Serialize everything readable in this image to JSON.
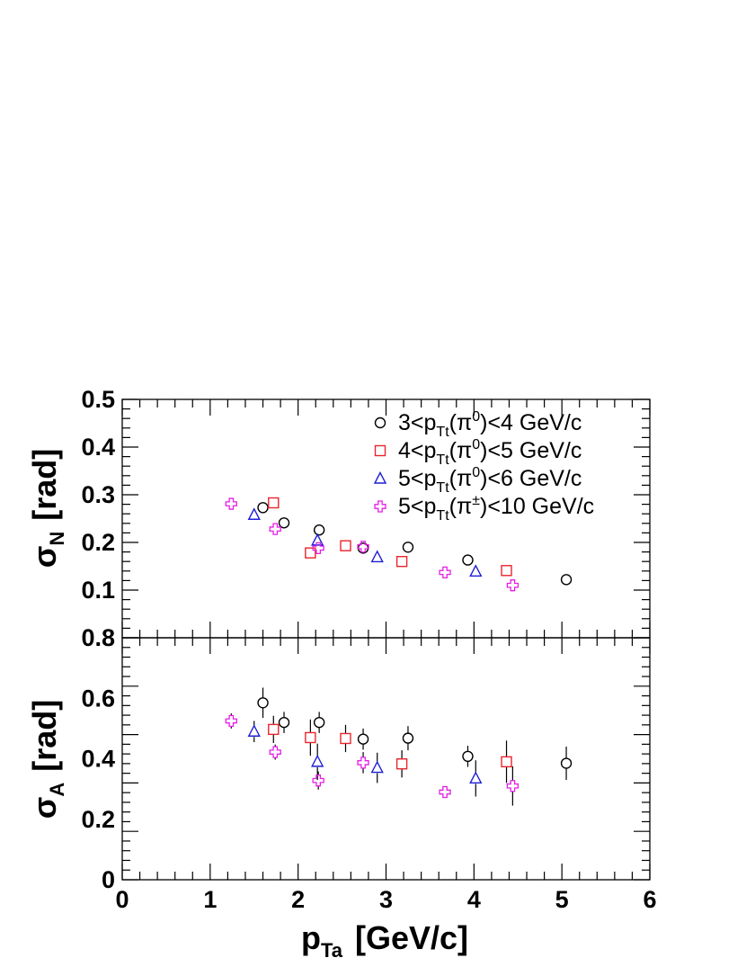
{
  "chart_data": [
    {
      "type": "scatter",
      "panel": "top",
      "ylabel": {
        "symbol": "σ",
        "subscript": "N",
        "unit": "[rad]"
      },
      "xlim": [
        0,
        6
      ],
      "ylim": [
        0.0,
        0.5
      ],
      "yticks": [
        "0.5",
        "0.4",
        "0.3",
        "0.2",
        "0.1",
        "0.8"
      ],
      "ytick_values": [
        0.5,
        0.4,
        0.3,
        0.2,
        0.1,
        0.0
      ],
      "grid": false,
      "legend_position": "top-right",
      "series": [
        {
          "name": "3<p_Tt(π^0)<4 GeV/c",
          "legend": {
            "pre": "3<p",
            "sub": "Tt",
            "mid": "(π",
            "sup": "0",
            "post": ")<4 GeV/c"
          },
          "marker": "circle",
          "color": "#000000",
          "points": [
            {
              "x": 1.6,
              "y": 0.273,
              "err": 0.01
            },
            {
              "x": 1.84,
              "y": 0.241,
              "err": 0.008
            },
            {
              "x": 2.24,
              "y": 0.226,
              "err": 0.008
            },
            {
              "x": 2.74,
              "y": 0.188,
              "err": 0.006
            },
            {
              "x": 3.25,
              "y": 0.19,
              "err": 0.007
            },
            {
              "x": 3.93,
              "y": 0.163,
              "err": 0.006
            },
            {
              "x": 5.05,
              "y": 0.122,
              "err": 0.006
            }
          ]
        },
        {
          "name": "4<p_Tt(π^0)<5 GeV/c",
          "legend": {
            "pre": "4<p",
            "sub": "Tt",
            "mid": "(π",
            "sup": "0",
            "post": ")<5 GeV/c"
          },
          "marker": "square",
          "color": "#e8262d",
          "points": [
            {
              "x": 1.72,
              "y": 0.283,
              "err": 0.012
            },
            {
              "x": 2.14,
              "y": 0.178,
              "err": 0.006
            },
            {
              "x": 2.54,
              "y": 0.193,
              "err": 0.006
            },
            {
              "x": 3.18,
              "y": 0.16,
              "err": 0.006
            },
            {
              "x": 4.37,
              "y": 0.141,
              "err": 0.007
            }
          ]
        },
        {
          "name": "5<p_Tt(π^0)<6 GeV/c",
          "legend": {
            "pre": "5<p",
            "sub": "Tt",
            "mid": "(π",
            "sup": "0",
            "post": ")<6 GeV/c"
          },
          "marker": "triangle",
          "color": "#1f1fd6",
          "points": [
            {
              "x": 1.5,
              "y": 0.258,
              "err": 0.01
            },
            {
              "x": 2.22,
              "y": 0.204,
              "err": 0.008
            },
            {
              "x": 2.9,
              "y": 0.169,
              "err": 0.007
            },
            {
              "x": 4.02,
              "y": 0.139,
              "err": 0.008
            }
          ]
        },
        {
          "name": "5<p_Tt(π^±)<10 GeV/c",
          "legend": {
            "pre": "5<p",
            "sub": "Tt",
            "mid": "(π",
            "sup": "±",
            "post": ")<10 GeV/c"
          },
          "marker": "cross",
          "color": "#e61ee6",
          "points": [
            {
              "x": 1.24,
              "y": 0.281,
              "err": 0.007
            },
            {
              "x": 1.74,
              "y": 0.228,
              "err": 0.006
            },
            {
              "x": 2.23,
              "y": 0.188,
              "err": 0.006
            },
            {
              "x": 2.74,
              "y": 0.191,
              "err": 0.005
            },
            {
              "x": 3.67,
              "y": 0.137,
              "err": 0.005
            },
            {
              "x": 4.44,
              "y": 0.11,
              "err": 0.005
            }
          ]
        }
      ]
    },
    {
      "type": "scatter",
      "panel": "bottom",
      "xlabel": {
        "main": "p",
        "subscript": "Ta",
        "unit": "[GeV/c]"
      },
      "ylabel": {
        "symbol": "σ",
        "subscript": "A",
        "unit": "[rad]"
      },
      "xlim": [
        0,
        6
      ],
      "ylim": [
        0,
        0.8
      ],
      "xticks": [
        "0",
        "1",
        "2",
        "3",
        "4",
        "5",
        "6"
      ],
      "yticks": [
        "0.6",
        "0.4",
        "0.2",
        "0"
      ],
      "ytick_values": [
        0.6,
        0.4,
        0.2,
        0.0
      ],
      "grid": false,
      "series": [
        {
          "name": "3<p_Tt(π^0)<4 GeV/c",
          "marker": "circle",
          "color": "#000000",
          "points": [
            {
              "x": 1.6,
              "y": 0.585,
              "err": 0.05
            },
            {
              "x": 1.84,
              "y": 0.52,
              "err": 0.035
            },
            {
              "x": 2.24,
              "y": 0.52,
              "err": 0.035
            },
            {
              "x": 2.74,
              "y": 0.465,
              "err": 0.035
            },
            {
              "x": 3.25,
              "y": 0.468,
              "err": 0.04
            },
            {
              "x": 3.93,
              "y": 0.408,
              "err": 0.035
            },
            {
              "x": 5.05,
              "y": 0.385,
              "err": 0.055
            }
          ]
        },
        {
          "name": "4<p_Tt(π^0)<5 GeV/c",
          "marker": "square",
          "color": "#e8262d",
          "points": [
            {
              "x": 1.72,
              "y": 0.497,
              "err": 0.045
            },
            {
              "x": 2.14,
              "y": 0.47,
              "err": 0.06
            },
            {
              "x": 2.54,
              "y": 0.467,
              "err": 0.045
            },
            {
              "x": 3.18,
              "y": 0.383,
              "err": 0.045
            },
            {
              "x": 4.37,
              "y": 0.39,
              "err": 0.07
            }
          ]
        },
        {
          "name": "5<p_Tt(π^0)<6 GeV/c",
          "marker": "triangle",
          "color": "#1f1fd6",
          "points": [
            {
              "x": 1.5,
              "y": 0.49,
              "err": 0.035
            },
            {
              "x": 2.22,
              "y": 0.39,
              "err": 0.06
            },
            {
              "x": 2.9,
              "y": 0.37,
              "err": 0.05
            },
            {
              "x": 4.02,
              "y": 0.335,
              "err": 0.06
            }
          ]
        },
        {
          "name": "5<p_Tt(π^±)<10 GeV/c",
          "marker": "cross",
          "color": "#e61ee6",
          "points": [
            {
              "x": 1.24,
              "y": 0.525,
              "err": 0.025
            },
            {
              "x": 1.74,
              "y": 0.422,
              "err": 0.025
            },
            {
              "x": 2.23,
              "y": 0.328,
              "err": 0.03
            },
            {
              "x": 2.74,
              "y": 0.387,
              "err": 0.035
            },
            {
              "x": 3.67,
              "y": 0.29,
              "err": 0.02
            },
            {
              "x": 4.44,
              "y": 0.31,
              "err": 0.065
            }
          ]
        }
      ]
    }
  ]
}
